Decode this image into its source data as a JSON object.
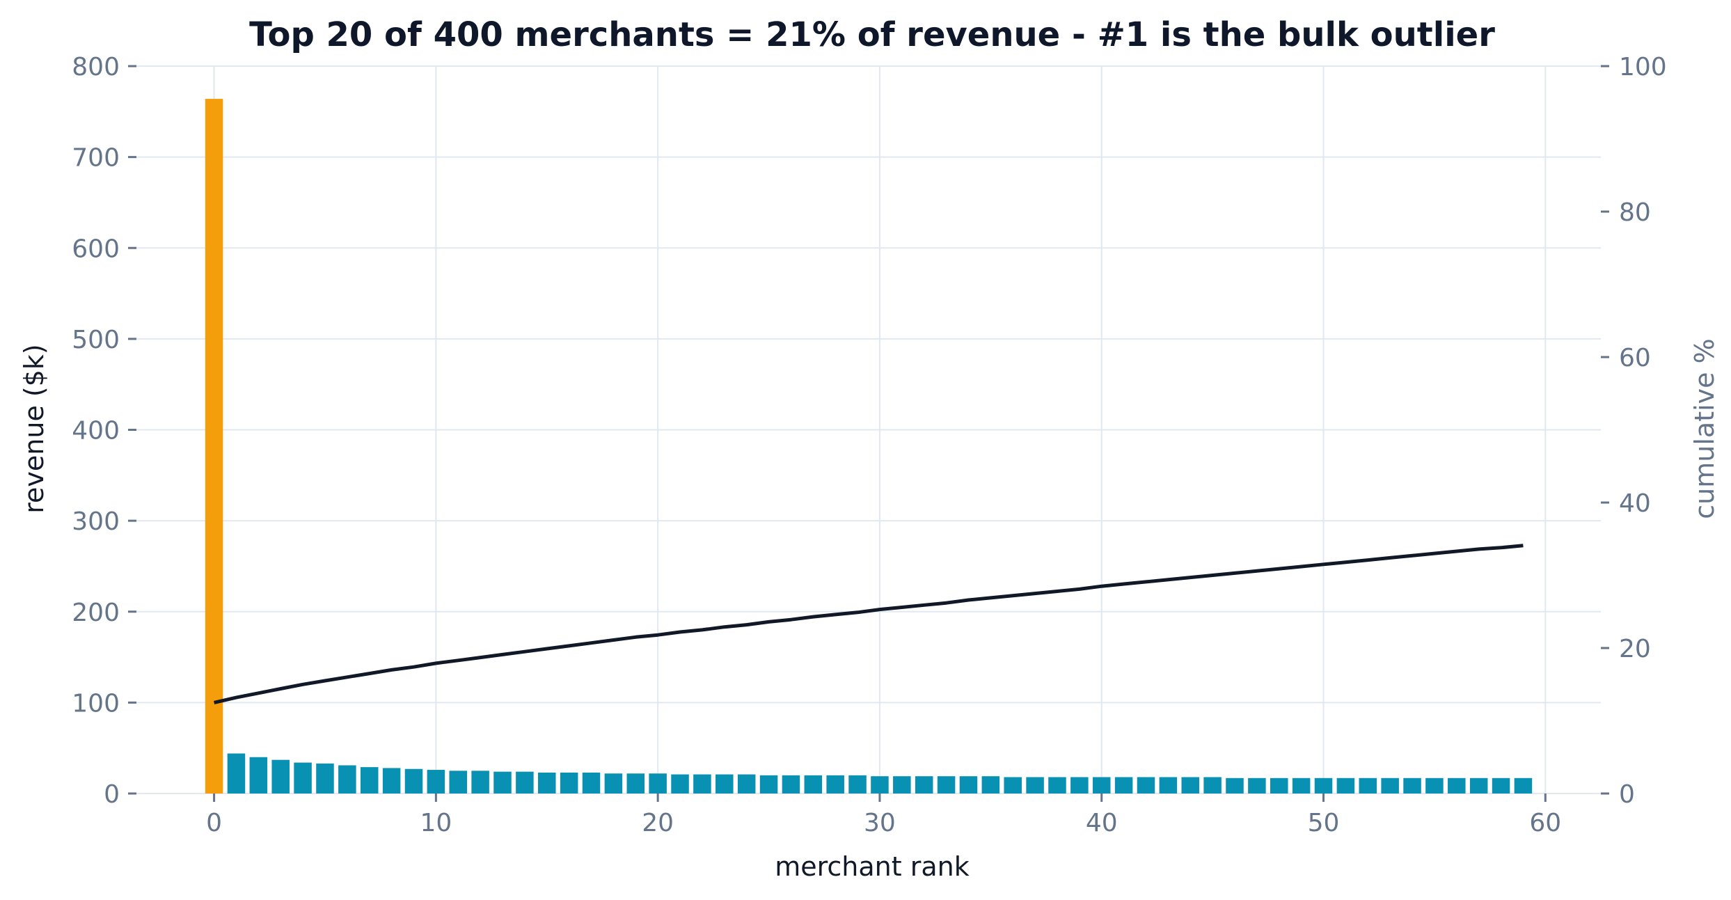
{
  "chart_data": {
    "type": "bar",
    "title": "Top 20 of 400 merchants = 21% of revenue - #1 is the bulk outlier",
    "xlabel": "merchant rank",
    "ylabel": "revenue ($k)",
    "y2label": "cumulative %",
    "xlim": [
      -3.5,
      62.5
    ],
    "ylim": [
      0,
      800
    ],
    "y2lim": [
      0,
      100
    ],
    "x_ticks": [
      0,
      10,
      20,
      30,
      40,
      50,
      60
    ],
    "y_ticks": [
      0,
      100,
      200,
      300,
      400,
      500,
      600,
      700,
      800
    ],
    "y2_ticks": [
      0,
      20,
      40,
      60,
      80,
      100
    ],
    "grid": true,
    "colors": {
      "outlier": "#f59e0b",
      "bars": "#0891b2",
      "cumulative_line": "#111827",
      "grid": "#e2e8f0",
      "ticks": "#64748b"
    },
    "series": [
      {
        "type": "bar",
        "x": [
          0,
          1,
          2,
          3,
          4,
          5,
          6,
          7,
          8,
          9,
          10,
          11,
          12,
          13,
          14,
          15,
          16,
          17,
          18,
          19,
          20,
          21,
          22,
          23,
          24,
          25,
          26,
          27,
          28,
          29,
          30,
          31,
          32,
          33,
          34,
          35,
          36,
          37,
          38,
          39,
          40,
          41,
          42,
          43,
          44,
          45,
          46,
          47,
          48,
          49,
          50,
          51,
          52,
          53,
          54,
          55,
          56,
          57,
          58,
          59
        ],
        "values": [
          764,
          44,
          40,
          37,
          34,
          33,
          31,
          29,
          28,
          27,
          26,
          25,
          25,
          24,
          24,
          23,
          23,
          23,
          22,
          22,
          22,
          21,
          21,
          21,
          21,
          20,
          20,
          20,
          20,
          20,
          19,
          19,
          19,
          19,
          19,
          19,
          18,
          18,
          18,
          18,
          18,
          18,
          18,
          18,
          18,
          18,
          17,
          17,
          17,
          17,
          17,
          17,
          17,
          17,
          17,
          17,
          17,
          17,
          17,
          17
        ],
        "highlight_index": 0
      },
      {
        "type": "line",
        "axis": "right",
        "x": [
          0,
          1,
          2,
          3,
          4,
          5,
          6,
          7,
          8,
          9,
          10,
          11,
          12,
          13,
          14,
          15,
          16,
          17,
          18,
          19,
          20,
          21,
          22,
          23,
          24,
          25,
          26,
          27,
          28,
          29,
          30,
          31,
          32,
          33,
          34,
          35,
          36,
          37,
          38,
          39,
          40,
          41,
          42,
          43,
          44,
          45,
          46,
          47,
          48,
          49,
          50,
          51,
          52,
          53,
          54,
          55,
          56,
          57,
          58,
          59
        ],
        "values": [
          12.5,
          13.2,
          13.8,
          14.4,
          15.0,
          15.5,
          16.0,
          16.5,
          17.0,
          17.4,
          17.9,
          18.3,
          18.7,
          19.1,
          19.5,
          19.9,
          20.3,
          20.7,
          21.1,
          21.5,
          21.8,
          22.2,
          22.5,
          22.9,
          23.2,
          23.6,
          23.9,
          24.3,
          24.6,
          24.9,
          25.3,
          25.6,
          25.9,
          26.2,
          26.6,
          26.9,
          27.2,
          27.5,
          27.8,
          28.1,
          28.5,
          28.8,
          29.1,
          29.4,
          29.7,
          30.0,
          30.3,
          30.6,
          30.9,
          31.2,
          31.5,
          31.8,
          32.1,
          32.4,
          32.7,
          33.0,
          33.3,
          33.6,
          33.8,
          34.1
        ]
      }
    ]
  }
}
